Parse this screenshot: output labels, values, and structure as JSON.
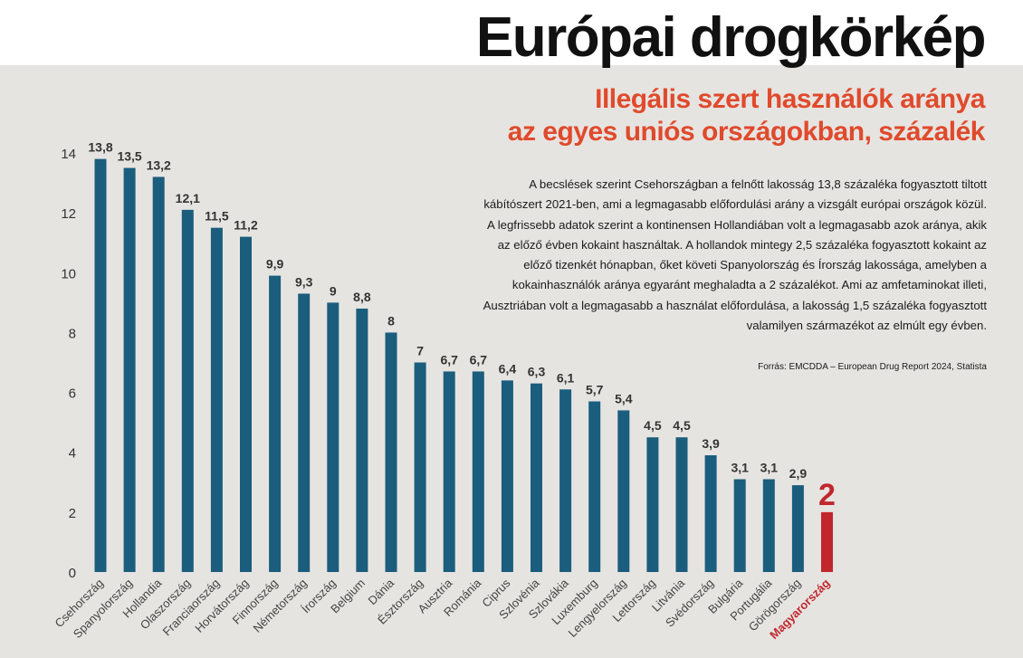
{
  "header": {
    "title": "Európai drogkörkép",
    "subtitle_line1": "Illegális szert használók aránya",
    "subtitle_line2": "az egyes uniós országokban, százalék",
    "description": "A becslések szerint Csehországban a felnőtt lakosság 13,8 százaléka fogyasztott tiltott kábítószert 2021-ben, ami a legmagasabb előfordulási arány a vizsgált európai országok közül. A legfrissebb adatok szerint a kontinensen Hollandiában volt a legmagasabb azok aránya, akik az előző évben kokaint használtak. A hollandok mintegy 2,5 százaléka fogyasztott kokaint az előző tizenkét hónapban, őket követi Spanyolország és Írország lakossága, amelyben a kokainhasználók aránya egyaránt meghaladta a 2 százalékot. Ami az amfetaminokat illeti, Ausztriában volt a legmagasabb a használat előfordulása, a lakosság 1,5 százaléka fogyasztott valamilyen származékot az elmúlt egy évben.",
    "source": "Forrás: EMCDDA – European Drug Report 2024, Statista"
  },
  "colors": {
    "bar": "#1b5d7d",
    "highlight": "#c1272d",
    "subtitle": "#e04a2c",
    "background_panel": "#e6e4e1"
  },
  "chart_data": {
    "type": "bar",
    "categories": [
      "Csehország",
      "Spanyolország",
      "Hollandia",
      "Olaszország",
      "Franciaország",
      "Horvátország",
      "Finnország",
      "Németország",
      "Írország",
      "Belgium",
      "Dánia",
      "Észtország",
      "Ausztria",
      "Románia",
      "Ciprus",
      "Szlovénia",
      "Szlovákia",
      "Luxemburg",
      "Lengyelország",
      "Lettország",
      "Litvánia",
      "Svédország",
      "Bulgária",
      "Portugália",
      "Görögország",
      "Magyarország"
    ],
    "values": [
      13.8,
      13.5,
      13.2,
      12.1,
      11.5,
      11.2,
      9.9,
      9.3,
      9,
      8.8,
      8,
      7,
      6.7,
      6.7,
      6.4,
      6.3,
      6.1,
      5.7,
      5.4,
      4.5,
      4.5,
      3.9,
      3.1,
      3.1,
      2.9,
      2
    ],
    "value_labels": [
      "13,8",
      "13,5",
      "13,2",
      "12,1",
      "11,5",
      "11,2",
      "9,9",
      "9,3",
      "9",
      "8,8",
      "8",
      "7",
      "6,7",
      "6,7",
      "6,4",
      "6,3",
      "6,1",
      "5,7",
      "5,4",
      "4,5",
      "4,5",
      "3,9",
      "3,1",
      "3,1",
      "2,9",
      "2"
    ],
    "highlight": "Magyarország",
    "yticks": [
      "0",
      "2",
      "4",
      "6",
      "8",
      "10",
      "12",
      "14"
    ],
    "ylim": [
      0,
      14
    ],
    "grid": false,
    "legend": "none"
  }
}
